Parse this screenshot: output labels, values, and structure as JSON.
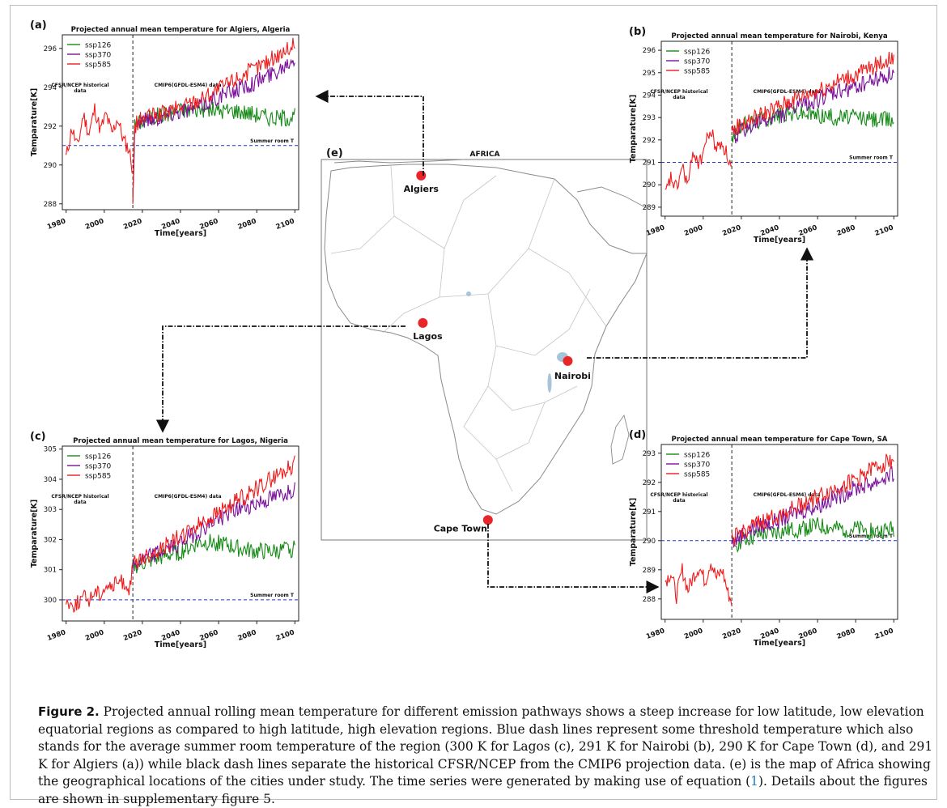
{
  "figure": {
    "caption": {
      "label": "Figure 2.",
      "part1": " Projected annual rolling mean temperature for different emission pathways shows a steep increase for low latitude, low elevation equatorial regions as compared to high latitude, high elevation regions. Blue dash lines represent some threshold temperature which also stands for the average summer room temperature of the region (300 K for Lagos (c), 291 K for Nairobi (b), 290 K for Cape Town (d), and 291 K for Algiers (a)) while black dash lines separate the historical CFSR/NCEP from the CMIP6 projection data. (e) is the map of Africa showing the geographical locations of the cities under study. The time series were generated by making use of equation (",
      "eq_ref": "1",
      "part2": "). Details about the figures are shown in supplementary figure 5."
    },
    "map": {
      "panel": "(e)",
      "title": "AFRICA",
      "cities": [
        {
          "name": "Algiers",
          "lon": 3.0,
          "lat": 36.7
        },
        {
          "name": "Lagos",
          "lon": 3.4,
          "lat": 6.5
        },
        {
          "name": "Nairobi",
          "lon": 36.8,
          "lat": -1.3
        },
        {
          "name": "Cape Town",
          "lon": 18.4,
          "lat": -33.9
        }
      ]
    },
    "colors": {
      "ssp126": "#168a16",
      "ssp370": "#7a0f9c",
      "ssp585": "#ee1c1c",
      "threshold": "#2233cc",
      "divider": "#222222",
      "city_marker": "#e8262a"
    }
  },
  "chart_data": [
    {
      "type": "line",
      "panel": "(a)",
      "city": "Algiers",
      "title": "Projected annual mean temperature for Algiers, Algeria",
      "xlabel": "Time[years]",
      "ylabel": "Temparature[K]",
      "xlim": [
        1978,
        2102
      ],
      "ylim": [
        287.7,
        296.7
      ],
      "xticks": [
        1980,
        2000,
        2020,
        2040,
        2060,
        2080,
        2100
      ],
      "yticks": [
        288,
        290,
        292,
        294,
        296
      ],
      "divider_year": 2015,
      "threshold": {
        "value": 291,
        "label": "Summer room T"
      },
      "annotations": {
        "historical": [
          "CFSR/NCEP historical",
          "data"
        ],
        "projection": "CMIP6(GFDL-ESM4) data"
      },
      "legend": "top-left",
      "grid": false,
      "historical": {
        "start": 1980,
        "end": 2015,
        "points": [
          [
            1980,
            290.4
          ],
          [
            1983,
            291.9
          ],
          [
            1986,
            290.9
          ],
          [
            1989,
            292.6
          ],
          [
            1992,
            291.6
          ],
          [
            1995,
            292.9
          ],
          [
            1998,
            291.8
          ],
          [
            2001,
            292.6
          ],
          [
            2004,
            291.6
          ],
          [
            2007,
            292.4
          ],
          [
            2010,
            291.3
          ],
          [
            2013,
            290.8
          ],
          [
            2015,
            289.7
          ]
        ]
      },
      "series": [
        {
          "name": "ssp126",
          "start": 2015,
          "end": 2100,
          "points": [
            [
              2015,
              288.5
            ],
            [
              2016,
              292.0
            ],
            [
              2020,
              292.3
            ],
            [
              2030,
              292.6
            ],
            [
              2040,
              292.8
            ],
            [
              2050,
              292.9
            ],
            [
              2060,
              292.8
            ],
            [
              2070,
              292.8
            ],
            [
              2080,
              292.6
            ],
            [
              2090,
              292.4
            ],
            [
              2100,
              292.5
            ]
          ]
        },
        {
          "name": "ssp370",
          "start": 2015,
          "end": 2100,
          "points": [
            [
              2015,
              288.3
            ],
            [
              2016,
              292.1
            ],
            [
              2020,
              292.3
            ],
            [
              2030,
              292.5
            ],
            [
              2040,
              292.8
            ],
            [
              2050,
              293.0
            ],
            [
              2060,
              293.5
            ],
            [
              2070,
              293.9
            ],
            [
              2080,
              294.3
            ],
            [
              2090,
              294.8
            ],
            [
              2100,
              295.6
            ]
          ]
        },
        {
          "name": "ssp585",
          "start": 2015,
          "end": 2100,
          "points": [
            [
              2015,
              288.2
            ],
            [
              2016,
              292.0
            ],
            [
              2020,
              292.4
            ],
            [
              2030,
              292.6
            ],
            [
              2040,
              293.0
            ],
            [
              2050,
              293.4
            ],
            [
              2060,
              293.9
            ],
            [
              2070,
              294.5
            ],
            [
              2080,
              295.0
            ],
            [
              2090,
              295.6
            ],
            [
              2100,
              296.2
            ]
          ]
        }
      ]
    },
    {
      "type": "line",
      "panel": "(b)",
      "city": "Nairobi",
      "title": "Projected annual mean temperature for Nairobi, Kenya",
      "xlabel": "Time[years]",
      "ylabel": "Temparature[K]",
      "xlim": [
        1978,
        2102
      ],
      "ylim": [
        288.6,
        296.4
      ],
      "xticks": [
        1980,
        2000,
        2020,
        2040,
        2060,
        2080,
        2100
      ],
      "yticks": [
        289,
        290,
        291,
        292,
        293,
        294,
        295,
        296
      ],
      "divider_year": 2015,
      "threshold": {
        "value": 291,
        "label": "Summer room T"
      },
      "annotations": {
        "historical": [
          "CFSR/NCEP historical",
          "data"
        ],
        "projection": "CMIP6(GFDL-ESM4) data"
      },
      "legend": "top-left",
      "grid": false,
      "historical": {
        "start": 1980,
        "end": 2015,
        "points": [
          [
            1980,
            289.5
          ],
          [
            1983,
            290.3
          ],
          [
            1986,
            289.8
          ],
          [
            1989,
            290.8
          ],
          [
            1992,
            290.0
          ],
          [
            1995,
            291.5
          ],
          [
            1998,
            290.9
          ],
          [
            2001,
            291.8
          ],
          [
            2004,
            292.4
          ],
          [
            2007,
            291.6
          ],
          [
            2010,
            291.9
          ],
          [
            2013,
            291.2
          ],
          [
            2015,
            290.7
          ]
        ]
      },
      "series": [
        {
          "name": "ssp126",
          "start": 2015,
          "end": 2100,
          "points": [
            [
              2015,
              292.2
            ],
            [
              2020,
              292.6
            ],
            [
              2030,
              292.9
            ],
            [
              2040,
              293.1
            ],
            [
              2050,
              293.2
            ],
            [
              2060,
              293.1
            ],
            [
              2070,
              293.0
            ],
            [
              2080,
              293.0
            ],
            [
              2090,
              292.9
            ],
            [
              2100,
              292.9
            ]
          ]
        },
        {
          "name": "ssp370",
          "start": 2015,
          "end": 2100,
          "points": [
            [
              2015,
              292.1
            ],
            [
              2020,
              292.4
            ],
            [
              2030,
              292.8
            ],
            [
              2040,
              293.1
            ],
            [
              2050,
              293.5
            ],
            [
              2060,
              293.8
            ],
            [
              2070,
              294.1
            ],
            [
              2080,
              294.4
            ],
            [
              2090,
              294.7
            ],
            [
              2100,
              295.0
            ]
          ]
        },
        {
          "name": "ssp585",
          "start": 2015,
          "end": 2100,
          "points": [
            [
              2015,
              292.4
            ],
            [
              2020,
              292.7
            ],
            [
              2030,
              293.1
            ],
            [
              2040,
              293.5
            ],
            [
              2050,
              293.9
            ],
            [
              2060,
              294.2
            ],
            [
              2070,
              294.6
            ],
            [
              2080,
              294.9
            ],
            [
              2090,
              295.3
            ],
            [
              2100,
              295.7
            ]
          ]
        }
      ]
    },
    {
      "type": "line",
      "panel": "(c)",
      "city": "Lagos",
      "title": "Projected annual mean temperature for Lagos, Nigeria",
      "xlabel": "Time[years]",
      "ylabel": "Temparature[K]",
      "xlim": [
        1978,
        2102
      ],
      "ylim": [
        299.3,
        305.1
      ],
      "xticks": [
        1980,
        2000,
        2020,
        2040,
        2060,
        2080,
        2100
      ],
      "yticks": [
        300,
        301,
        302,
        303,
        304,
        305
      ],
      "divider_year": 2015,
      "threshold": {
        "value": 300,
        "label": "Summer room T"
      },
      "annotations": {
        "historical": [
          "CFSR/NCEP historical",
          "data"
        ],
        "projection": "CMIP6(GFDL-ESM4) data"
      },
      "legend": "top-left",
      "grid": false,
      "historical": {
        "start": 1980,
        "end": 2015,
        "points": [
          [
            1980,
            300.0
          ],
          [
            1983,
            299.8
          ],
          [
            1986,
            299.9
          ],
          [
            1989,
            300.1
          ],
          [
            1992,
            300.0
          ],
          [
            1995,
            300.3
          ],
          [
            1998,
            300.2
          ],
          [
            2001,
            300.5
          ],
          [
            2004,
            300.4
          ],
          [
            2007,
            300.6
          ],
          [
            2010,
            300.6
          ],
          [
            2013,
            300.4
          ],
          [
            2015,
            301.0
          ]
        ]
      },
      "series": [
        {
          "name": "ssp126",
          "start": 2015,
          "end": 2100,
          "points": [
            [
              2015,
              301.1
            ],
            [
              2020,
              301.2
            ],
            [
              2030,
              301.4
            ],
            [
              2040,
              301.6
            ],
            [
              2050,
              301.9
            ],
            [
              2060,
              301.9
            ],
            [
              2070,
              301.7
            ],
            [
              2080,
              301.6
            ],
            [
              2090,
              301.6
            ],
            [
              2100,
              301.7
            ]
          ]
        },
        {
          "name": "ssp370",
          "start": 2015,
          "end": 2100,
          "points": [
            [
              2015,
              301.1
            ],
            [
              2020,
              301.3
            ],
            [
              2030,
              301.6
            ],
            [
              2040,
              301.9
            ],
            [
              2050,
              302.3
            ],
            [
              2060,
              302.7
            ],
            [
              2070,
              303.0
            ],
            [
              2080,
              303.2
            ],
            [
              2090,
              303.4
            ],
            [
              2100,
              303.7
            ]
          ]
        },
        {
          "name": "ssp585",
          "start": 2015,
          "end": 2100,
          "points": [
            [
              2015,
              301.2
            ],
            [
              2020,
              301.4
            ],
            [
              2030,
              301.7
            ],
            [
              2040,
              302.1
            ],
            [
              2050,
              302.5
            ],
            [
              2060,
              302.9
            ],
            [
              2070,
              303.3
            ],
            [
              2080,
              303.7
            ],
            [
              2090,
              304.1
            ],
            [
              2100,
              304.5
            ]
          ]
        }
      ]
    },
    {
      "type": "line",
      "panel": "(d)",
      "city": "Cape Town",
      "title": "Projected annual mean temperature for Cape Town, SA",
      "xlabel": "Time[years]",
      "ylabel": "Temparature[K]",
      "xlim": [
        1978,
        2102
      ],
      "ylim": [
        287.3,
        293.3
      ],
      "xticks": [
        1980,
        2000,
        2020,
        2040,
        2060,
        2080,
        2100
      ],
      "yticks": [
        288,
        289,
        290,
        291,
        292,
        293
      ],
      "divider_year": 2015,
      "threshold": {
        "value": 290,
        "label": "Summer room T"
      },
      "annotations": {
        "historical": [
          "CFSR/NCEP historical",
          "data"
        ],
        "projection": "CMIP6(GFDL-ESM4) data"
      },
      "legend": "top-left",
      "grid": false,
      "historical": {
        "start": 1980,
        "end": 2015,
        "points": [
          [
            1980,
            288.6
          ],
          [
            1983,
            288.9
          ],
          [
            1986,
            288.1
          ],
          [
            1989,
            289.0
          ],
          [
            1992,
            288.3
          ],
          [
            1995,
            288.8
          ],
          [
            1998,
            289.1
          ],
          [
            2001,
            288.6
          ],
          [
            2004,
            289.3
          ],
          [
            2007,
            288.7
          ],
          [
            2010,
            289.0
          ],
          [
            2013,
            288.2
          ],
          [
            2015,
            287.9
          ]
        ]
      },
      "series": [
        {
          "name": "ssp126",
          "start": 2015,
          "end": 2100,
          "points": [
            [
              2015,
              289.8
            ],
            [
              2020,
              290.0
            ],
            [
              2030,
              290.2
            ],
            [
              2040,
              290.3
            ],
            [
              2050,
              290.4
            ],
            [
              2060,
              290.5
            ],
            [
              2070,
              290.4
            ],
            [
              2080,
              290.4
            ],
            [
              2090,
              290.3
            ],
            [
              2100,
              290.4
            ]
          ]
        },
        {
          "name": "ssp370",
          "start": 2015,
          "end": 2100,
          "points": [
            [
              2015,
              289.9
            ],
            [
              2020,
              290.2
            ],
            [
              2030,
              290.5
            ],
            [
              2040,
              290.7
            ],
            [
              2050,
              291.0
            ],
            [
              2060,
              291.2
            ],
            [
              2070,
              291.5
            ],
            [
              2080,
              291.8
            ],
            [
              2090,
              292.0
            ],
            [
              2100,
              292.3
            ]
          ]
        },
        {
          "name": "ssp585",
          "start": 2015,
          "end": 2100,
          "points": [
            [
              2015,
              290.0
            ],
            [
              2020,
              290.3
            ],
            [
              2030,
              290.6
            ],
            [
              2040,
              290.9
            ],
            [
              2050,
              291.2
            ],
            [
              2060,
              291.5
            ],
            [
              2070,
              291.8
            ],
            [
              2080,
              292.1
            ],
            [
              2090,
              292.5
            ],
            [
              2100,
              292.8
            ]
          ]
        }
      ]
    }
  ]
}
